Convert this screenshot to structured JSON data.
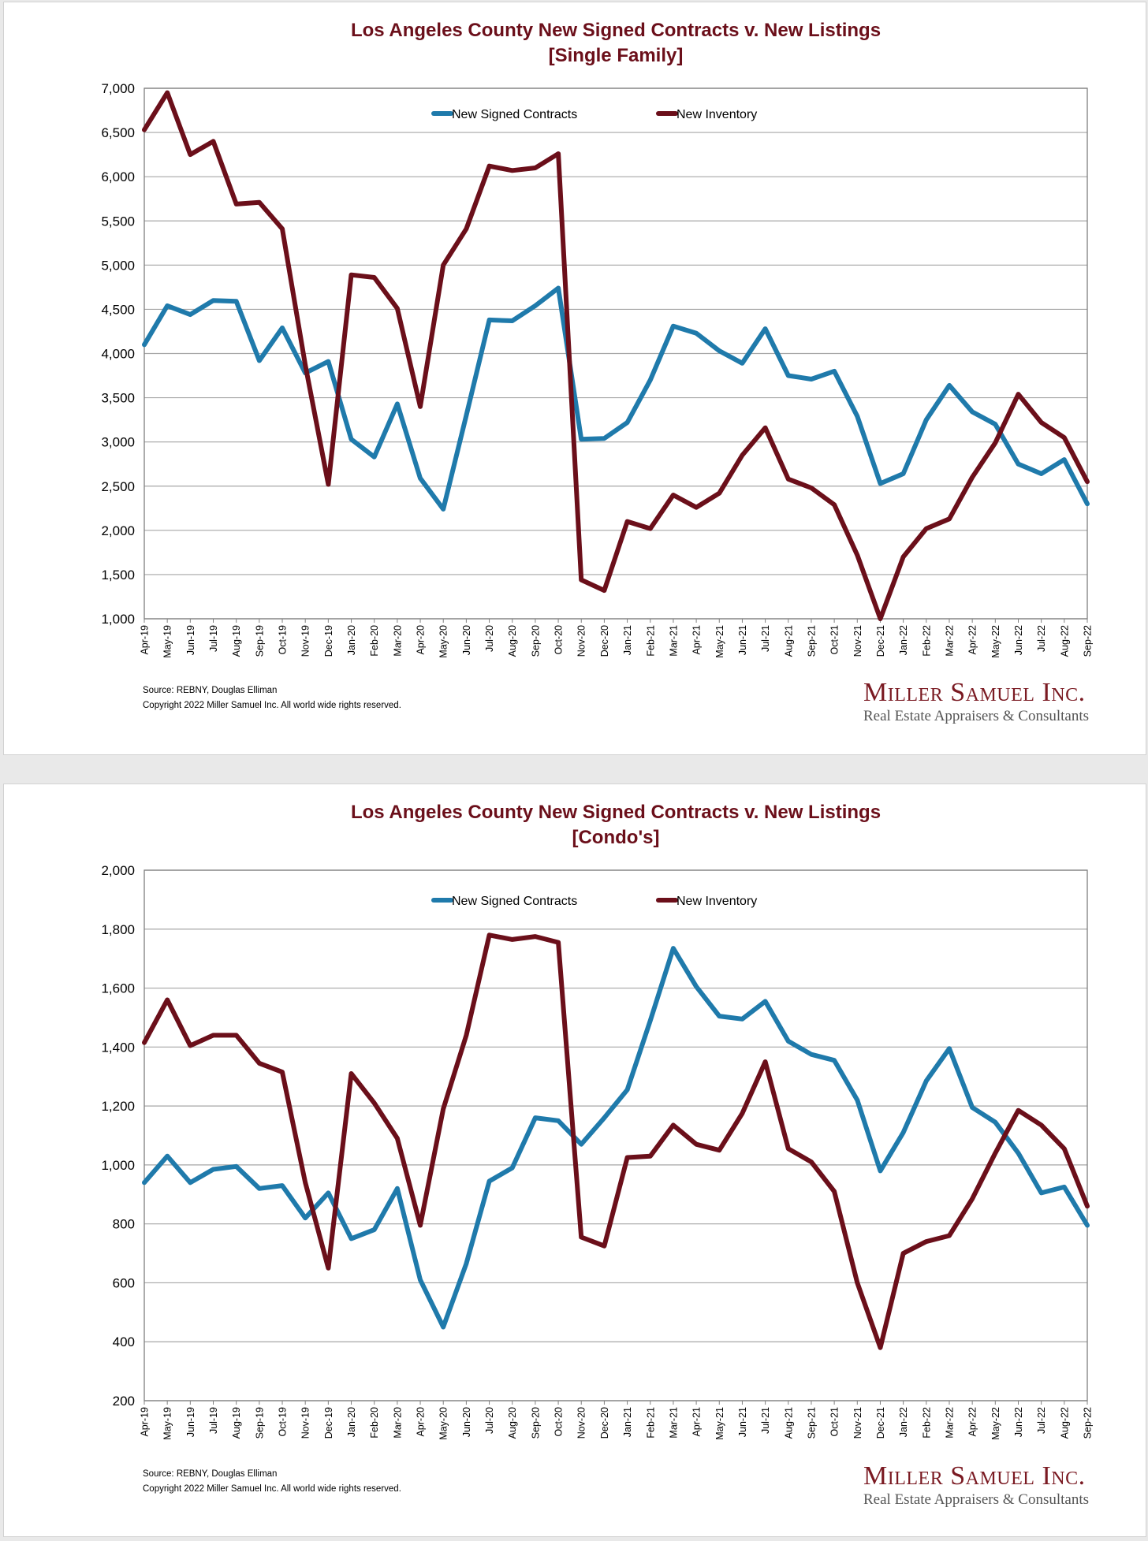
{
  "months": [
    "Apr-19",
    "May-19",
    "Jun-19",
    "Jul-19",
    "Aug-19",
    "Sep-19",
    "Oct-19",
    "Nov-19",
    "Dec-19",
    "Jan-20",
    "Feb-20",
    "Mar-20",
    "Apr-20",
    "May-20",
    "Jun-20",
    "Jul-20",
    "Aug-20",
    "Sep-20",
    "Oct-20",
    "Nov-20",
    "Dec-20",
    "Jan-21",
    "Feb-21",
    "Mar-21",
    "Apr-21",
    "May-21",
    "Jun-21",
    "Jul-21",
    "Aug-21",
    "Sep-21",
    "Oct-21",
    "Nov-21",
    "Dec-21",
    "Jan-22",
    "Feb-22",
    "Mar-22",
    "Apr-22",
    "May-22",
    "Jun-22",
    "Jul-22",
    "Aug-22",
    "Sep-22"
  ],
  "source_line": "Source: REBNY, Douglas Elliman",
  "copyright_line": "Copyright 2022 Miller Samuel Inc.  All world wide rights reserved.",
  "logo": {
    "name": "Miller Samuel Inc.",
    "tagline": "Real Estate Appraisers & Consultants"
  },
  "colors": {
    "contracts": "#1f7aab",
    "inventory": "#6b0f1a",
    "title": "#6b0f1a",
    "grid": "#a6a6a6"
  },
  "chart_data": [
    {
      "type": "line",
      "title": "Los Angeles County New Signed Contracts v. New Listings",
      "subtitle": "[Single Family]",
      "xlabel": "",
      "ylabel": "",
      "ylim": [
        1000,
        7000
      ],
      "yticks": [
        1000,
        1500,
        2000,
        2500,
        3000,
        3500,
        4000,
        4500,
        5000,
        5500,
        6000,
        6500,
        7000
      ],
      "ytick_labels": [
        "1,000",
        "1,500",
        "2,000",
        "2,500",
        "3,000",
        "3,500",
        "4,000",
        "4,500",
        "5,000",
        "5,500",
        "6,000",
        "6,500",
        "7,000"
      ],
      "legend_position": "top-center",
      "series": [
        {
          "name": "New Signed Contracts",
          "color": "#1f7aab",
          "values": [
            4100,
            4540,
            4440,
            4600,
            4590,
            3920,
            4290,
            3780,
            3910,
            3030,
            2830,
            3430,
            2590,
            2240,
            3300,
            4380,
            4370,
            4540,
            4740,
            3030,
            3040,
            3220,
            3700,
            4310,
            4230,
            4030,
            3890,
            4280,
            3750,
            3710,
            3800,
            3290,
            2530,
            2640,
            3250,
            3640,
            3340,
            3200,
            2750,
            2640,
            2800,
            2300
          ]
        },
        {
          "name": "New Inventory",
          "color": "#6b0f1a",
          "values": [
            6530,
            6950,
            6250,
            6400,
            5690,
            5710,
            5410,
            3870,
            2520,
            4890,
            4860,
            4510,
            3400,
            5000,
            5410,
            6120,
            6070,
            6100,
            6260,
            1440,
            1320,
            2100,
            2020,
            2400,
            2260,
            2420,
            2850,
            3160,
            2580,
            2480,
            2290,
            1720,
            1000,
            1700,
            2020,
            2130,
            2600,
            2990,
            3540,
            3220,
            3050,
            2550
          ]
        }
      ]
    },
    {
      "type": "line",
      "title": "Los Angeles County New Signed Contracts v. New Listings",
      "subtitle": "[Condo's]",
      "xlabel": "",
      "ylabel": "",
      "ylim": [
        200,
        2000
      ],
      "yticks": [
        200,
        400,
        600,
        800,
        1000,
        1200,
        1400,
        1600,
        1800,
        2000
      ],
      "ytick_labels": [
        "200",
        "400",
        "600",
        "800",
        "1,000",
        "1,200",
        "1,400",
        "1,600",
        "1,800",
        "2,000"
      ],
      "legend_position": "top-center",
      "series": [
        {
          "name": "New Signed Contracts",
          "color": "#1f7aab",
          "values": [
            940,
            1030,
            940,
            985,
            995,
            920,
            930,
            820,
            905,
            750,
            780,
            920,
            610,
            450,
            665,
            945,
            990,
            1160,
            1150,
            1070,
            1160,
            1255,
            1490,
            1735,
            1605,
            1505,
            1495,
            1555,
            1420,
            1375,
            1355,
            1220,
            980,
            1110,
            1285,
            1395,
            1195,
            1145,
            1040,
            905,
            925,
            795
          ]
        },
        {
          "name": "New Inventory",
          "color": "#6b0f1a",
          "values": [
            1415,
            1560,
            1405,
            1440,
            1440,
            1345,
            1315,
            940,
            650,
            1310,
            1210,
            1090,
            795,
            1190,
            1440,
            1780,
            1765,
            1775,
            1755,
            755,
            725,
            1025,
            1030,
            1135,
            1070,
            1050,
            1175,
            1350,
            1055,
            1010,
            910,
            600,
            380,
            700,
            740,
            760,
            885,
            1040,
            1185,
            1135,
            1055,
            860
          ]
        }
      ]
    }
  ]
}
